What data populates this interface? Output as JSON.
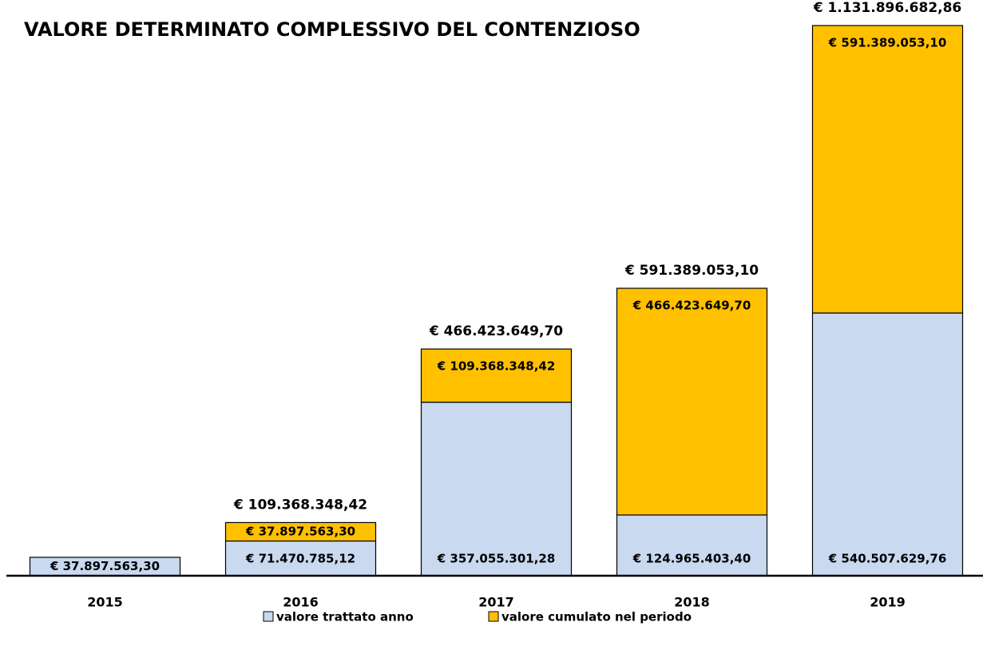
{
  "chart_data": {
    "type": "stacked_bar",
    "title": "VALORE DETERMINATO COMPLESSIVO DEL CONTENZIOSO",
    "categories": [
      "2015",
      "2016",
      "2017",
      "2018",
      "2019"
    ],
    "series": [
      {
        "name": "valore trattato anno",
        "color": "#c9d9f0",
        "values": [
          37897563.3,
          71470785.12,
          357055301.28,
          124965403.4,
          540507629.76
        ],
        "value_labels": [
          "€ 37.897.563,30",
          "€ 71.470.785,12",
          "€ 357.055.301,28",
          "€ 124.965.403,40",
          "€ 540.507.629,76"
        ]
      },
      {
        "name": "valore cumulato nel periodo",
        "color": "#ffc000",
        "values": [
          null,
          37897563.3,
          109368348.42,
          466423649.7,
          591389053.1
        ],
        "value_labels": [
          null,
          "€ 37.897.563,30",
          "€ 109.368.348,42",
          "€ 466.423.649,70",
          "€ 591.389.053,10"
        ]
      }
    ],
    "totals": {
      "values": [
        null,
        109368348.42,
        466423649.7,
        591389053.1,
        1131896682.86
      ],
      "value_labels": [
        null,
        "€ 109.368.348,42",
        "€ 466.423.649,70",
        "€ 591.389.053,10",
        "€ 1.131.896.682,86"
      ]
    }
  }
}
